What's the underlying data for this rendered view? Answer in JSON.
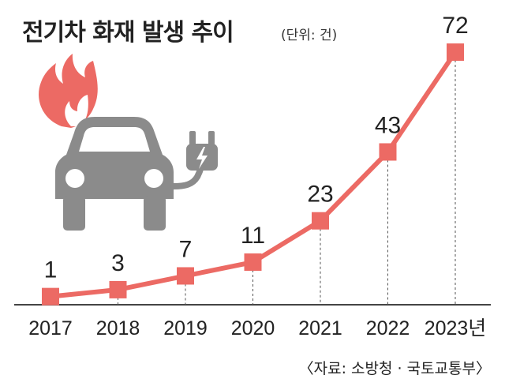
{
  "title": "전기차 화재 발생 추이",
  "unit": "(단위: 건)",
  "source": "〈자료: 소방청 · 국토교통부〉",
  "icons": [
    "flame-icon",
    "electric-car-icon",
    "plug-icon"
  ],
  "colors": {
    "line": "#ec6a64",
    "marker": "#ec6a64",
    "car": "#8b8b8b",
    "flame": "#ec6a64"
  },
  "chart_data": {
    "type": "line",
    "categories": [
      "2017",
      "2018",
      "2019",
      "2020",
      "2021",
      "2022",
      "2023년"
    ],
    "values": [
      1,
      3,
      7,
      11,
      23,
      43,
      72
    ],
    "data_labels": [
      "1",
      "3",
      "7",
      "11",
      "23",
      "43",
      "72"
    ],
    "title": "전기차 화재 발생 추이",
    "ylabel": "",
    "xlabel": "",
    "ylim": [
      0,
      72
    ],
    "grid": false
  }
}
